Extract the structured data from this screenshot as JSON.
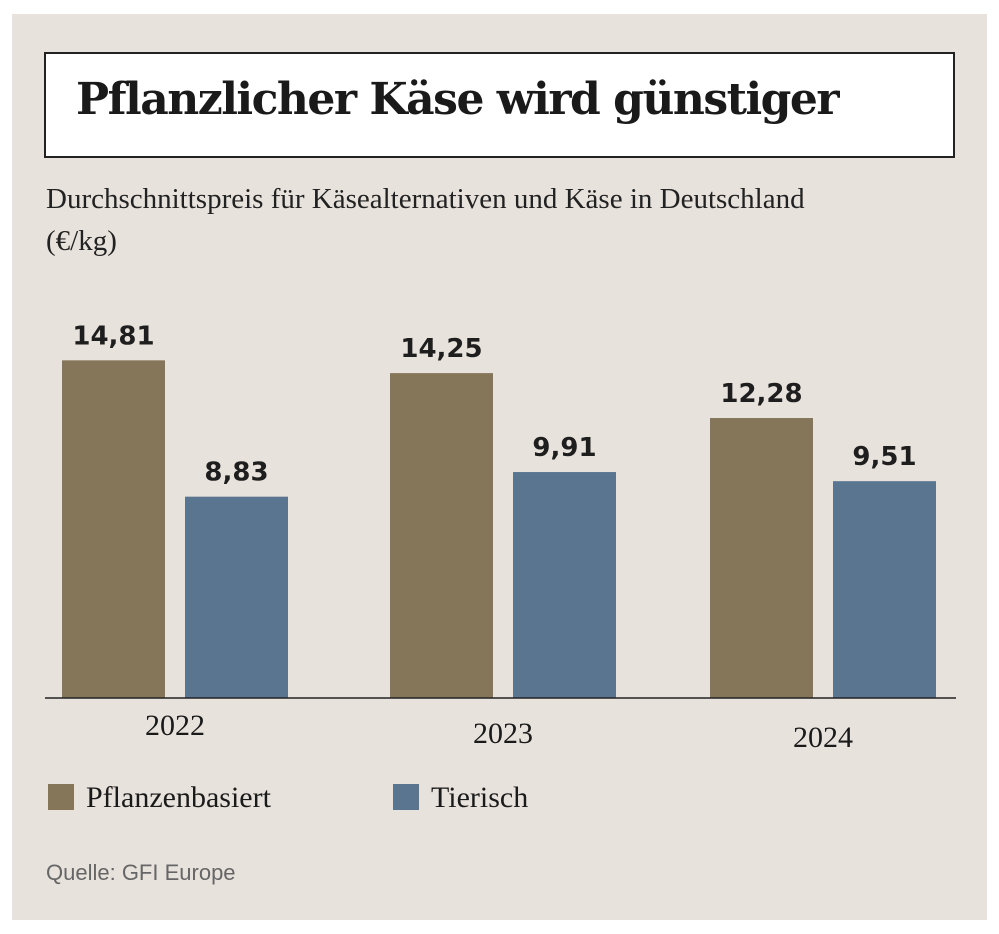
{
  "chart_data": {
    "type": "bar",
    "title": "Pflanzlicher Käse wird günstiger",
    "subtitle": "Durchschnittspreis für Käsealternativen und Käse in Deutschland (€/kg)",
    "categories": [
      "2022",
      "2023",
      "2024"
    ],
    "series": [
      {
        "name": "Pflanzenbasiert",
        "values": [
          14.81,
          14.25,
          12.28
        ],
        "labels": [
          "14,81",
          "14,25",
          "12,28"
        ],
        "color": "#85765a"
      },
      {
        "name": "Tierisch",
        "values": [
          8.83,
          9.91,
          9.51
        ],
        "labels": [
          "8,83",
          "9,91",
          "9,51"
        ],
        "color": "#5a7590"
      }
    ],
    "ylim": [
      0,
      15
    ],
    "grid": false,
    "legend": "bottom-left",
    "source": "Quelle: GFI Europe"
  },
  "colors": {
    "background": "#e8e2dc"
  }
}
